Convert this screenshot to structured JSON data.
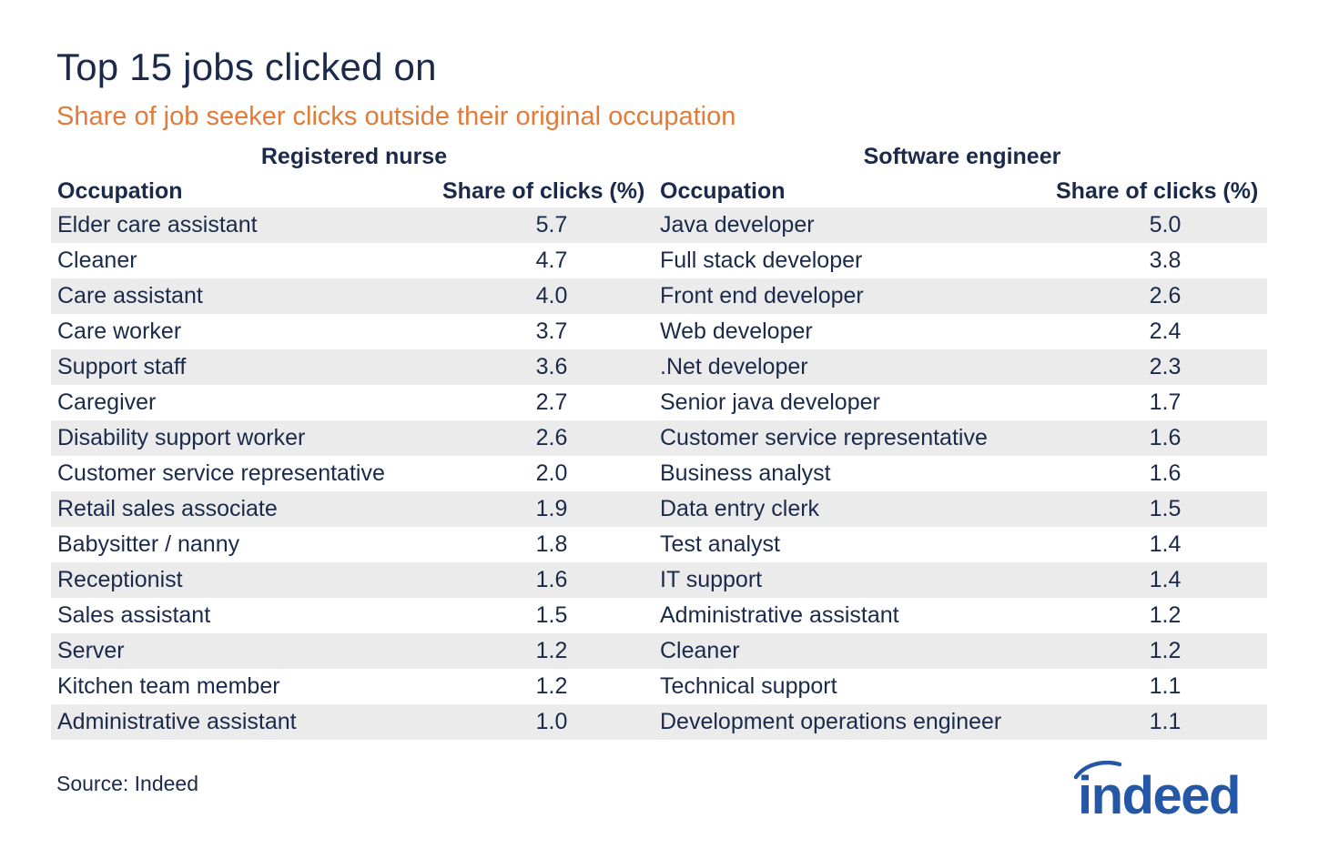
{
  "chart_data": {
    "type": "table",
    "title": "Top 15 jobs clicked on",
    "subtitle": "Share of job seeker clicks outside their original occupation",
    "groups": [
      {
        "name": "Registered nurse",
        "columns": [
          "Occupation",
          "Share of clicks (%)"
        ],
        "rows": [
          {
            "occupation": "Elder care assistant",
            "share": "5.7"
          },
          {
            "occupation": "Cleaner",
            "share": "4.7"
          },
          {
            "occupation": "Care assistant",
            "share": "4.0"
          },
          {
            "occupation": "Care worker",
            "share": "3.7"
          },
          {
            "occupation": "Support staff",
            "share": "3.6"
          },
          {
            "occupation": "Caregiver",
            "share": "2.7"
          },
          {
            "occupation": "Disability support worker",
            "share": "2.6"
          },
          {
            "occupation": "Customer service representative",
            "share": "2.0"
          },
          {
            "occupation": "Retail sales associate",
            "share": "1.9"
          },
          {
            "occupation": "Babysitter / nanny",
            "share": "1.8"
          },
          {
            "occupation": "Receptionist",
            "share": "1.6"
          },
          {
            "occupation": "Sales assistant",
            "share": "1.5"
          },
          {
            "occupation": "Server",
            "share": "1.2"
          },
          {
            "occupation": "Kitchen team member",
            "share": "1.2"
          },
          {
            "occupation": "Administrative assistant",
            "share": "1.0"
          }
        ]
      },
      {
        "name": "Software engineer",
        "columns": [
          "Occupation",
          "Share of clicks (%)"
        ],
        "rows": [
          {
            "occupation": "Java developer",
            "share": "5.0"
          },
          {
            "occupation": "Full stack developer",
            "share": "3.8"
          },
          {
            "occupation": "Front end developer",
            "share": "2.6"
          },
          {
            "occupation": "Web developer",
            "share": "2.4"
          },
          {
            "occupation": ".Net developer",
            "share": "2.3"
          },
          {
            "occupation": "Senior java developer",
            "share": "1.7"
          },
          {
            "occupation": "Customer service representative",
            "share": "1.6"
          },
          {
            "occupation": "Business analyst",
            "share": "1.6"
          },
          {
            "occupation": "Data entry clerk",
            "share": "1.5"
          },
          {
            "occupation": "Test analyst",
            "share": "1.4"
          },
          {
            "occupation": "IT support",
            "share": "1.4"
          },
          {
            "occupation": "Administrative assistant",
            "share": "1.2"
          },
          {
            "occupation": "Cleaner",
            "share": "1.2"
          },
          {
            "occupation": "Technical support",
            "share": "1.1"
          },
          {
            "occupation": "Development operations engineer",
            "share": "1.1"
          }
        ]
      }
    ],
    "source": "Source: Indeed"
  },
  "logo": {
    "text": "indeed",
    "color": "#2557a7"
  },
  "colors": {
    "title": "#1b2a4a",
    "subtitle": "#e07b39",
    "stripe": "#ebebeb"
  }
}
